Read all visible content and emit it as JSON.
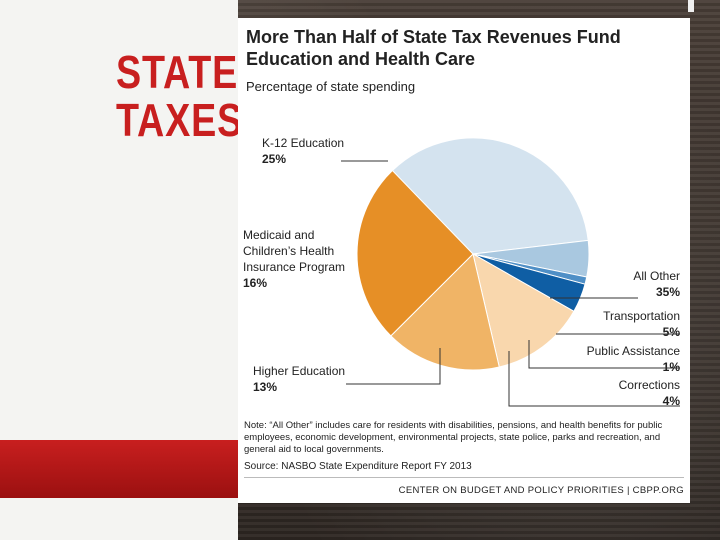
{
  "slide": {
    "title_line1": "STATE",
    "title_line2": "TAXES",
    "accent_color": "#c81f1f"
  },
  "chart": {
    "title": "More Than Half of State Tax Revenues Fund Education and Health Care",
    "subtitle": "Percentage of state spending",
    "note": "Note: “All Other” includes care for residents with disabilities, pensions, and health benefits for public employees, economic development, environmental projects, state police, parks and recreation, and general aid to local governments.",
    "source": "Source: NASBO State Expenditure Report FY 2013",
    "footer": "CENTER ON BUDGET AND POLICY PRIORITIES | CBPP.ORG"
  },
  "chart_data": {
    "type": "pie",
    "title": "More Than Half of State Tax Revenues Fund Education and Health Care",
    "subtitle": "Percentage of state spending",
    "unit": "%",
    "slices": [
      {
        "label": "All Other",
        "label_lines": [
          "All Other"
        ],
        "value": 35,
        "display": "35%",
        "color": "#d4e3ef"
      },
      {
        "label": "Transportation",
        "label_lines": [
          "Transportation"
        ],
        "value": 5,
        "display": "5%",
        "color": "#a9c8e0"
      },
      {
        "label": "Public Assistance",
        "label_lines": [
          "Public Assistance"
        ],
        "value": 1,
        "display": "1%",
        "color": "#4f8fc6"
      },
      {
        "label": "Corrections",
        "label_lines": [
          "Corrections"
        ],
        "value": 4,
        "display": "4%",
        "color": "#0f5ea4"
      },
      {
        "label": "Higher Education",
        "label_lines": [
          "Higher Education"
        ],
        "value": 13,
        "display": "13%",
        "color": "#f9d7ad"
      },
      {
        "label": "Medicaid and Children’s Health Insurance Program",
        "label_lines": [
          "Medicaid and",
          "Children’s Health",
          "Insurance Program"
        ],
        "value": 16,
        "display": "16%",
        "color": "#f0b466"
      },
      {
        "label": "K-12 Education",
        "label_lines": [
          "K-12 Education"
        ],
        "value": 25,
        "display": "25%",
        "color": "#e68f26"
      }
    ]
  }
}
